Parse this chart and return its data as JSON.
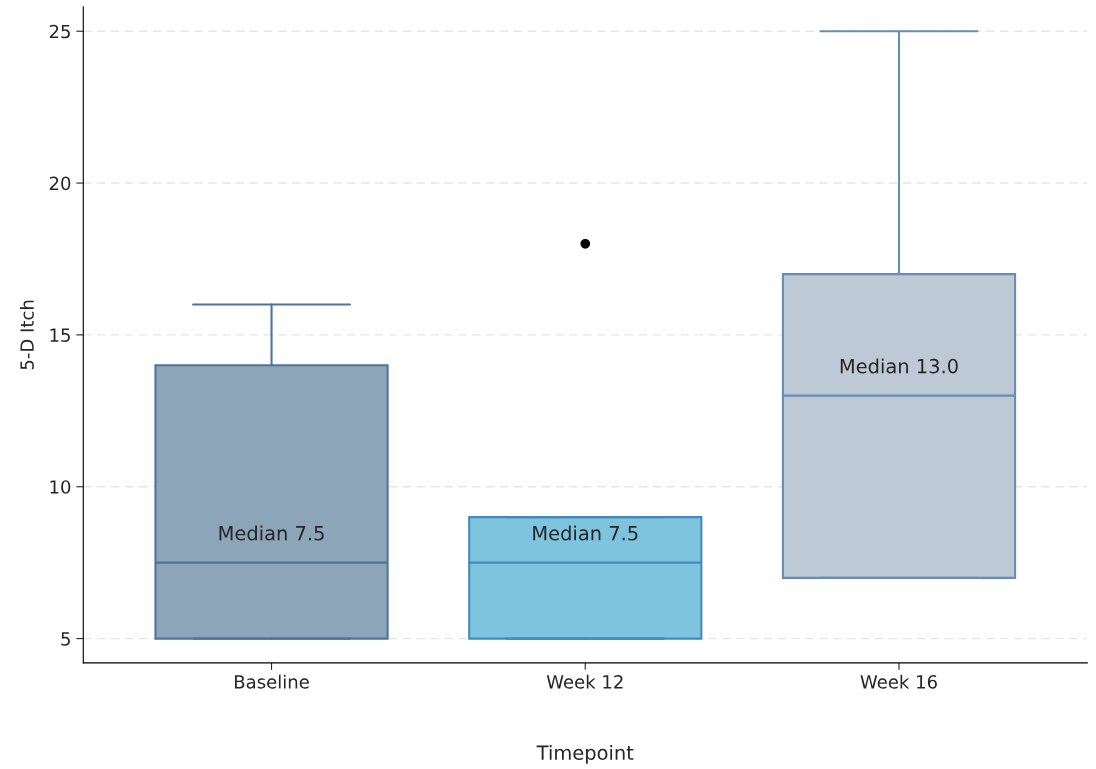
{
  "chart_data": {
    "type": "box",
    "xlabel": "Timepoint",
    "ylabel": "5-D Itch",
    "categories": [
      "Baseline",
      "Week 12",
      "Week 16"
    ],
    "boxes": [
      {
        "low": 5,
        "q1": 5,
        "median": 7.5,
        "q3": 14,
        "high": 16
      },
      {
        "low": 5,
        "q1": 5,
        "median": 7.5,
        "q3": 9,
        "high": 9,
        "outliers": [
          18
        ]
      },
      {
        "low": 7,
        "q1": 7,
        "median": 13,
        "q3": 17,
        "high": 25
      }
    ],
    "colors": [
      "#8da5b9",
      "#7fc4de",
      "#bdc9d5"
    ],
    "ylim": [
      4.2,
      25.8
    ],
    "yticks": [
      5,
      10,
      15,
      20,
      25
    ],
    "grid": "y",
    "annotations": [
      {
        "text": "Median 7.5",
        "x": "Baseline",
        "y": 7.5
      },
      {
        "text": "Median 7.5",
        "x": "Week 12",
        "y": 7.5
      },
      {
        "text": "Median 13.0",
        "x": "Week 16",
        "y": 13
      }
    ]
  }
}
